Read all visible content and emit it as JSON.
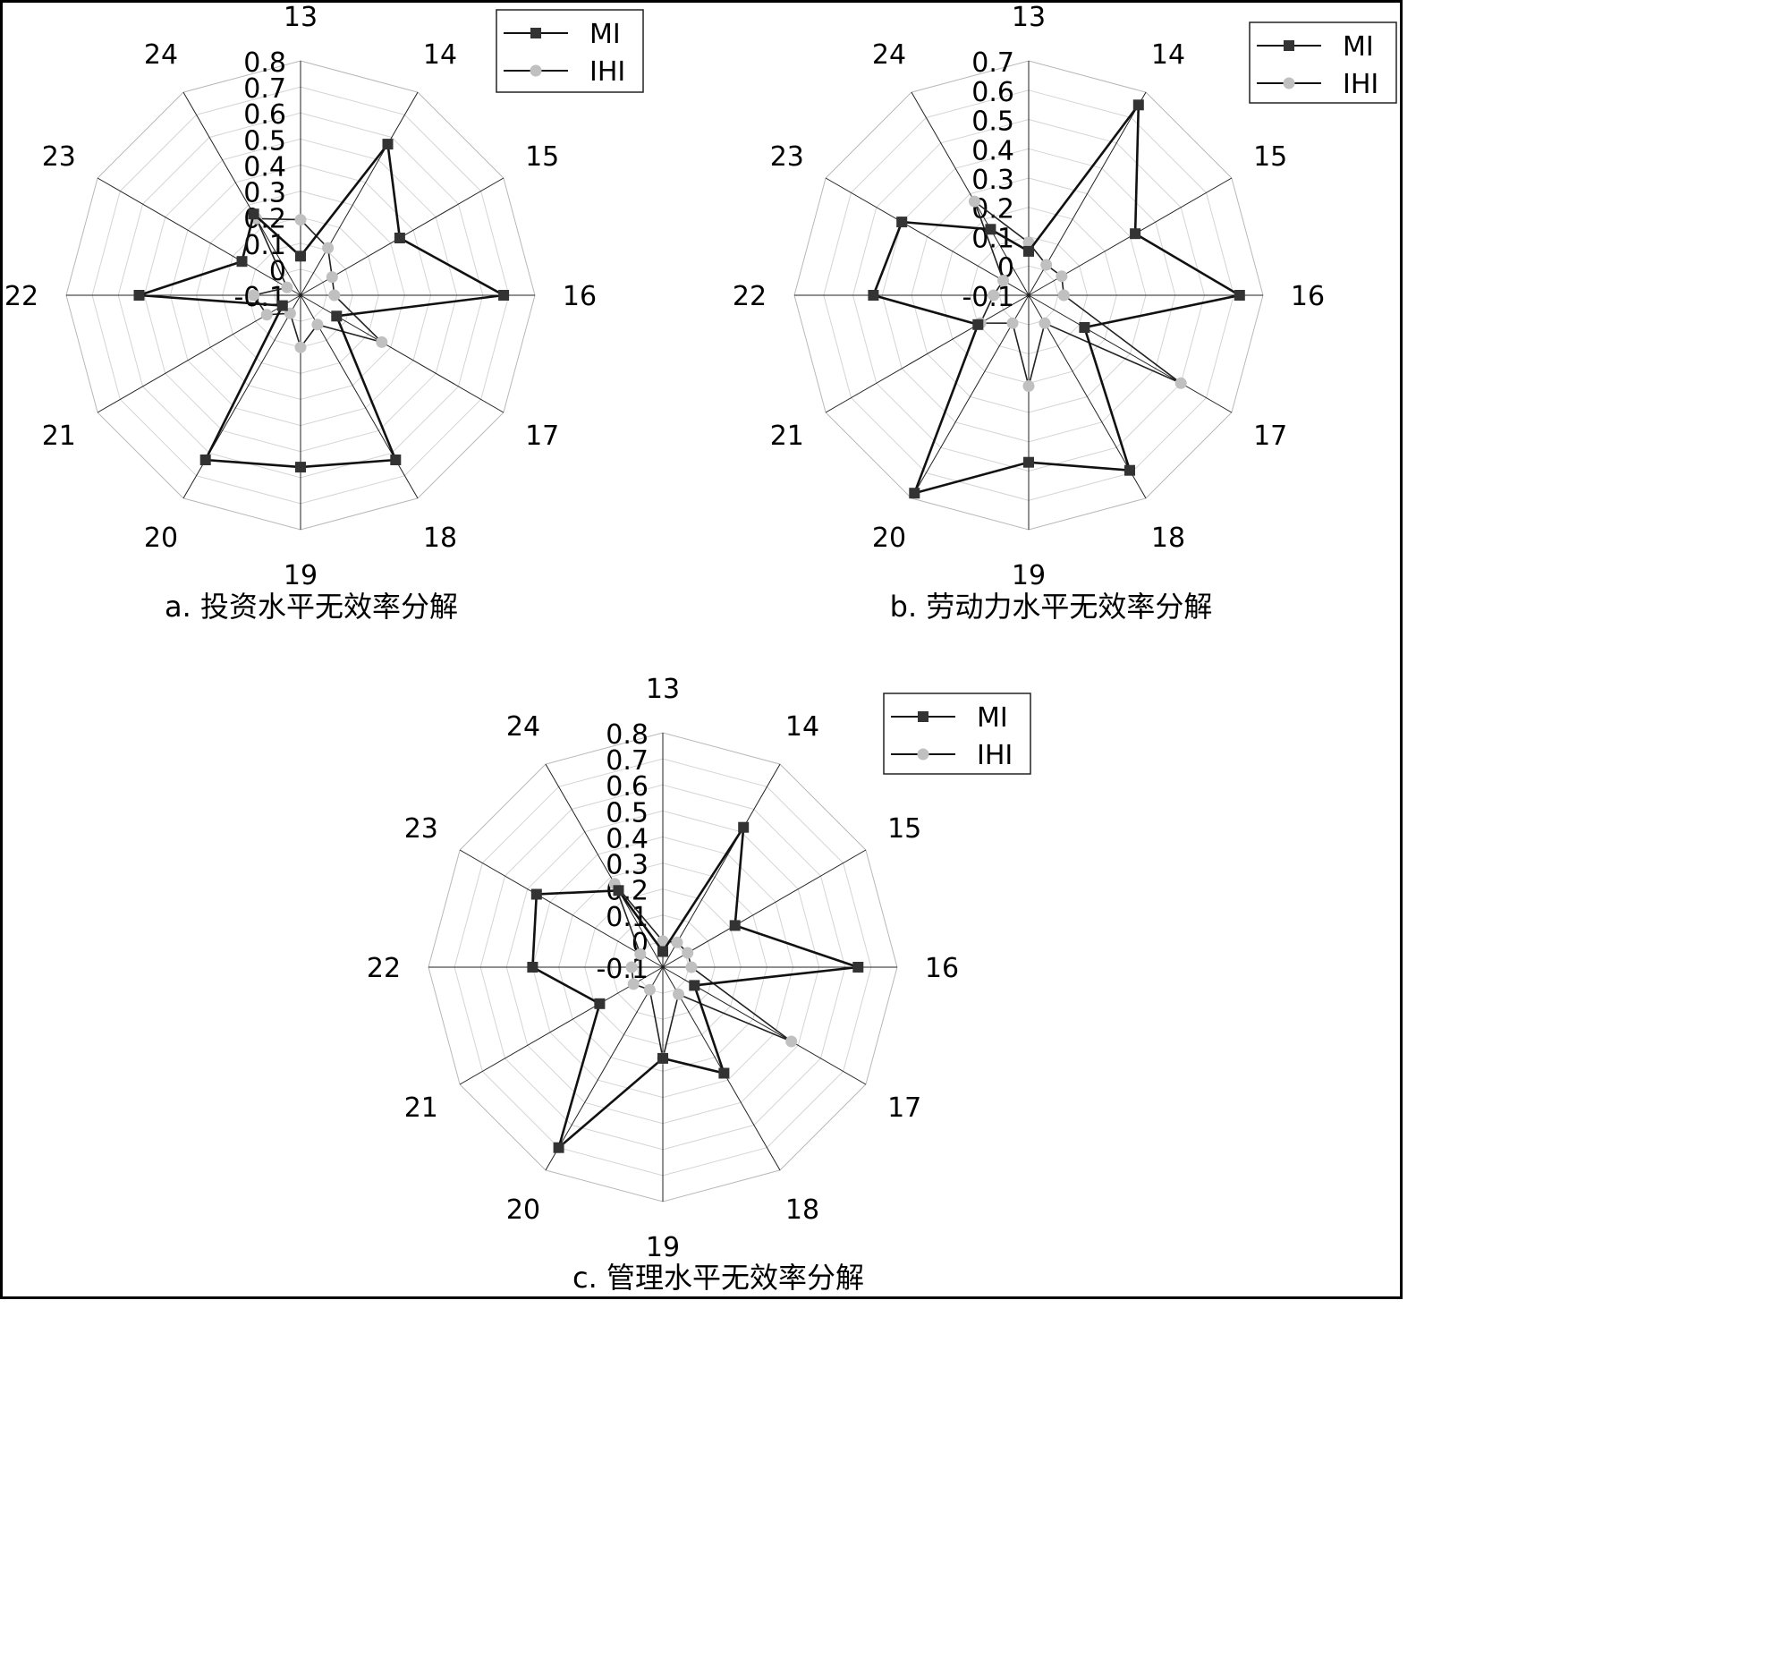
{
  "chart_data": [
    {
      "type": "radar",
      "caption": "a. 投资水平无效率分解",
      "categories": [
        "13",
        "14",
        "15",
        "16",
        "17",
        "18",
        "19",
        "20",
        "21",
        "22",
        "23",
        "24"
      ],
      "rlim": [
        -0.1,
        0.8
      ],
      "ticks": [
        "-0.1",
        "0",
        "0.1",
        "0.2",
        "0.3",
        "0.4",
        "0.5",
        "0.6",
        "0.7",
        "0.8"
      ],
      "legend": {
        "position": "top-right"
      },
      "series": [
        {
          "name": "MI",
          "color": "#333333",
          "marker": "square",
          "values": [
            0.05,
            0.57,
            0.34,
            0.68,
            0.06,
            0.63,
            0.56,
            0.63,
            -0.02,
            0.52,
            0.16,
            0.26
          ]
        },
        {
          "name": "IHI",
          "color": "#c0c0c0",
          "marker": "circle",
          "values": [
            0.19,
            0.11,
            0.04,
            0.03,
            0.26,
            0.03,
            0.1,
            -0.02,
            0.05,
            0.08,
            -0.04,
            0.24
          ]
        }
      ]
    },
    {
      "type": "radar",
      "caption": "b. 劳动力水平无效率分解",
      "categories": [
        "13",
        "14",
        "15",
        "16",
        "17",
        "18",
        "19",
        "20",
        "21",
        "22",
        "23",
        "24"
      ],
      "rlim": [
        -0.1,
        0.7
      ],
      "ticks": [
        "-0.1",
        "0",
        "0.1",
        "0.2",
        "0.3",
        "0.4",
        "0.5",
        "0.6",
        "0.7"
      ],
      "legend": {
        "position": "top-right"
      },
      "series": [
        {
          "name": "MI",
          "color": "#333333",
          "marker": "square",
          "values": [
            0.05,
            0.65,
            0.32,
            0.62,
            0.12,
            0.59,
            0.47,
            0.68,
            0.1,
            0.43,
            0.4,
            0.16
          ]
        },
        {
          "name": "IHI",
          "color": "#c0c0c0",
          "marker": "circle",
          "values": [
            0.08,
            0.02,
            0.03,
            0.02,
            0.5,
            0.01,
            0.21,
            0.01,
            0.09,
            0.02,
            0.0,
            0.27
          ]
        }
      ]
    },
    {
      "type": "radar",
      "caption": "c. 管理水平无效率分解",
      "categories": [
        "13",
        "14",
        "15",
        "16",
        "17",
        "18",
        "19",
        "20",
        "21",
        "22",
        "23",
        "24"
      ],
      "rlim": [
        -0.1,
        0.8
      ],
      "ticks": [
        "-0.1",
        "0",
        "0.1",
        "0.2",
        "0.3",
        "0.4",
        "0.5",
        "0.6",
        "0.7",
        "0.8"
      ],
      "legend": {
        "position": "top-right"
      },
      "series": [
        {
          "name": "MI",
          "color": "#333333",
          "marker": "square",
          "values": [
            -0.04,
            0.52,
            0.22,
            0.65,
            0.04,
            0.37,
            0.25,
            0.7,
            0.18,
            0.4,
            0.46,
            0.24
          ]
        },
        {
          "name": "IHI",
          "color": "#c0c0c0",
          "marker": "circle",
          "values": [
            0.0,
            0.01,
            0.01,
            0.01,
            0.47,
            0.02,
            0.25,
            0.0,
            0.03,
            0.02,
            0.0,
            0.27
          ]
        }
      ]
    }
  ]
}
